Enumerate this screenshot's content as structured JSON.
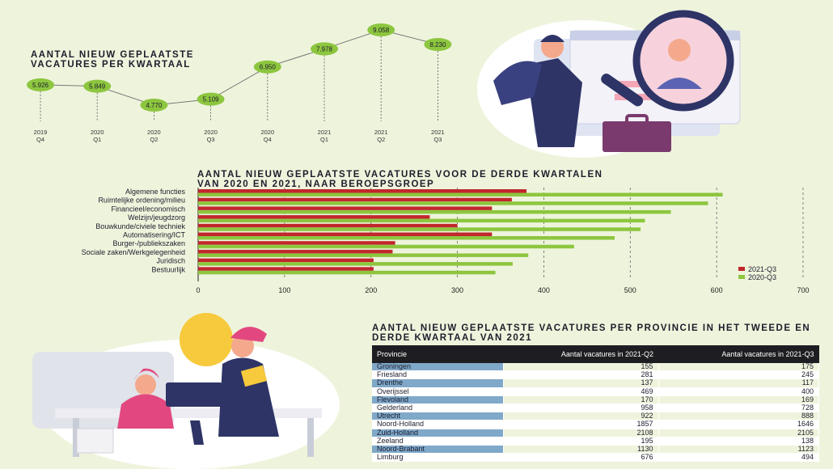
{
  "titles": {
    "line_chart": "AANTAL NIEUW GEPLAATSTE VACATURES PER KWARTAAL",
    "bar_chart": "AANTAL NIEUW GEPLAATSTE VACATURES VOOR DE DERDE KWARTALEN VAN 2020 EN 2021, NAAR BEROEPSGROEP",
    "table": "AANTAL NIEUW GEPLAATSTE VACATURES PER PROVINCIE IN HET TWEEDE EN DERDE KWARTAAL VAN 2021"
  },
  "colors": {
    "green": "#8dc63f",
    "red": "#c1272d",
    "navy": "#2e3466",
    "blue": "#7fa8c9"
  },
  "chart_data": [
    {
      "type": "line",
      "title": "AANTAL NIEUW GEPLAATSTE VACATURES PER KWARTAAL",
      "x": [
        [
          "2019",
          "Q4"
        ],
        [
          "2020",
          "Q1"
        ],
        [
          "2020",
          "Q2"
        ],
        [
          "2020",
          "Q3"
        ],
        [
          "2020",
          "Q4"
        ],
        [
          "2021",
          "Q1"
        ],
        [
          "2021",
          "Q2"
        ],
        [
          "2021",
          "Q3"
        ]
      ],
      "values": [
        5926,
        5849,
        4770,
        5109,
        6950,
        7978,
        9058,
        8230
      ],
      "labels": [
        "5.926",
        "5.849",
        "4.770",
        "5.109",
        "6.950",
        "7.978",
        "9.058",
        "8.230"
      ]
    },
    {
      "type": "bar",
      "orientation": "horizontal",
      "title": "AANTAL NIEUW GEPLAATSTE VACATURES VOOR DE DERDE KWARTALEN VAN 2020 EN 2021, NAAR BEROEPSGROEP",
      "categories": [
        "Algemene functies",
        "Ruimtelijke ordening/milieu",
        "Financieel/economisch",
        "Welzijn/jeugdzorg",
        "Bouwkunde/civiele techniek",
        "Automatisering/ICT",
        "Burger-/publiekszaken",
        "Sociale zaken/Werkgelegenheid",
        "Juridisch",
        "Bestuurlijk"
      ],
      "series": [
        {
          "name": "2021-Q3",
          "color": "#c1272d",
          "values": [
            380,
            363,
            340,
            268,
            300,
            340,
            228,
            225,
            203,
            203
          ]
        },
        {
          "name": "2020-Q3",
          "color": "#8dc63f",
          "values": [
            607,
            590,
            547,
            517,
            512,
            482,
            435,
            382,
            364,
            344
          ]
        }
      ],
      "xlim": [
        0,
        700
      ],
      "ticks": [
        "0",
        "100",
        "200",
        "300",
        "400",
        "500",
        "600",
        "700"
      ],
      "legend": "bottom-right",
      "grid": "dashed vertical"
    }
  ],
  "table": {
    "headers": [
      "Provincie",
      "Aantal vacatures in 2021-Q2",
      "Aantal vacatures in 2021-Q3"
    ],
    "rows": [
      [
        "Groningen",
        "155",
        "175"
      ],
      [
        "Friesland",
        "281",
        "245"
      ],
      [
        "Drenthe",
        "137",
        "117"
      ],
      [
        "Overijssel",
        "469",
        "400"
      ],
      [
        "Flevoland",
        "170",
        "169"
      ],
      [
        "Gelderland",
        "958",
        "728"
      ],
      [
        "Utrecht",
        "922",
        "888"
      ],
      [
        "Noord-Holland",
        "1857",
        "1646"
      ],
      [
        "Zuid-Holland",
        "2108",
        "2105"
      ],
      [
        "Zeeland",
        "195",
        "138"
      ],
      [
        "Noord-Brabant",
        "1130",
        "1123"
      ],
      [
        "Limburg",
        "676",
        "494"
      ]
    ]
  }
}
